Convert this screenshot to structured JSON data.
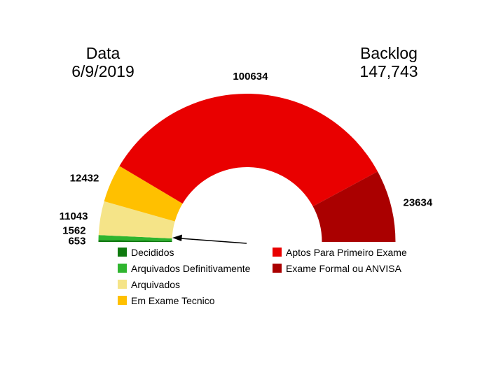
{
  "header": {
    "date_label": "Data",
    "date_value": "6/9/2019",
    "backlog_label": "Backlog",
    "backlog_value": "147,743"
  },
  "chart_data": {
    "type": "pie",
    "variant": "half-donut-gauge",
    "title": "Backlog",
    "total_backlog": 147743,
    "start_angle_deg": 180,
    "end_angle_deg": 0,
    "legend_position": "bottom",
    "segments": [
      {
        "label": "Decididos",
        "value": 653,
        "color": "#0F7A0F"
      },
      {
        "label": "Arquivados Definitivamente",
        "value": 1562,
        "color": "#2FB52F"
      },
      {
        "label": "Arquivados",
        "value": 11043,
        "color": "#F5E488"
      },
      {
        "label": "Em Exame Tecnico",
        "value": 12432,
        "color": "#FFC000"
      },
      {
        "label": "Aptos Para Primeiro Exame",
        "value": 100634,
        "color": "#E90000"
      },
      {
        "label": "Exame Formal ou ANVISA",
        "value": 23634,
        "color": "#AA0000"
      }
    ],
    "legend_columns": {
      "left": [
        0,
        1,
        2,
        3
      ],
      "right": [
        4,
        5
      ]
    }
  }
}
